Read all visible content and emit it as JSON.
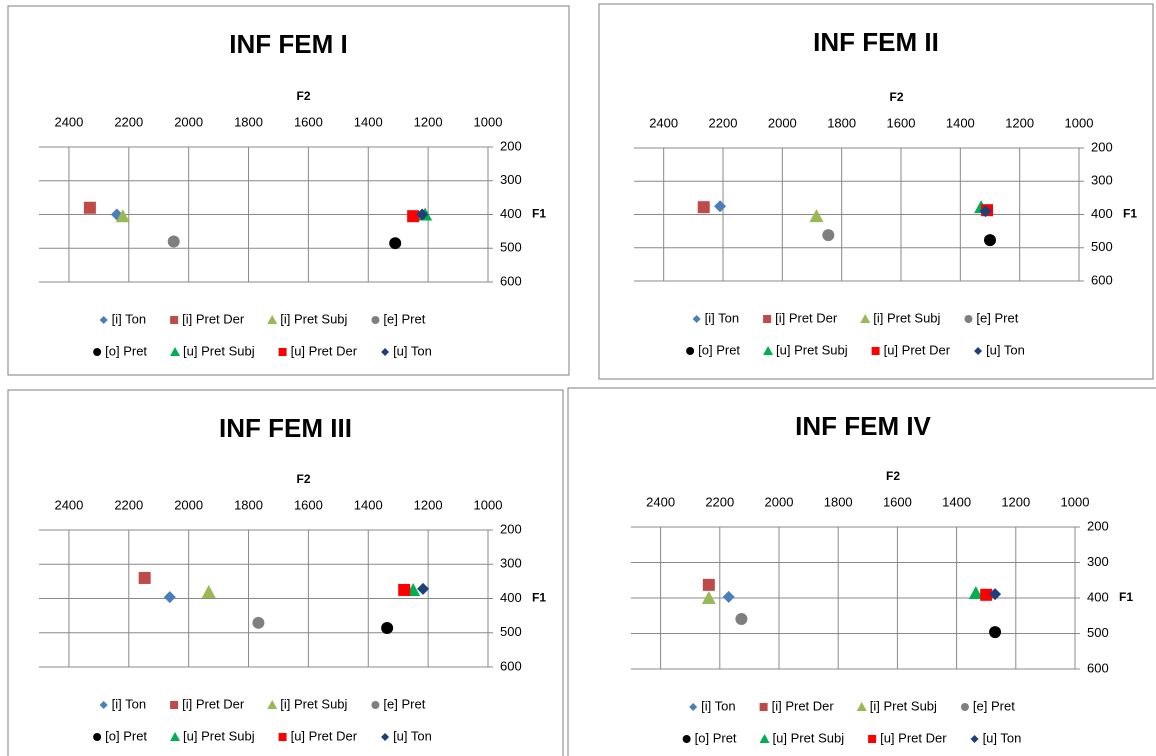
{
  "chart_data": [
    {
      "type": "scatter",
      "title": "INF FEM I",
      "x_label": "F2",
      "y_label": "F1",
      "xlim": [
        2500,
        1000
      ],
      "xticks": [
        2400,
        2200,
        2000,
        1800,
        1600,
        1400,
        1200,
        1000
      ],
      "ylim": [
        600,
        200
      ],
      "yticks": [
        200,
        300,
        400,
        500,
        600
      ],
      "grid": true,
      "series": [
        {
          "name": "[i] Ton",
          "color": "#4a7ebb",
          "marker": "diamond",
          "x": [
            2240
          ],
          "values": [
            400
          ]
        },
        {
          "name": "[i] Pret Der",
          "color": "#be4b48",
          "marker": "square",
          "x": [
            2330
          ],
          "values": [
            380
          ]
        },
        {
          "name": "[i] Pret Subj",
          "color": "#98b954",
          "marker": "triangle",
          "x": [
            2220
          ],
          "values": [
            405
          ]
        },
        {
          "name": "[e] Pret",
          "color": "#7f7f7f",
          "marker": "circle",
          "x": [
            2050
          ],
          "values": [
            480
          ]
        },
        {
          "name": "[o] Pret",
          "color": "#000000",
          "marker": "circle",
          "x": [
            1310
          ],
          "values": [
            485
          ]
        },
        {
          "name": "[u] Pret Subj",
          "color": "#00b050",
          "marker": "triangle",
          "x": [
            1210
          ],
          "values": [
            400
          ]
        },
        {
          "name": "[u] Pret Der",
          "color": "#ff0000",
          "marker": "square",
          "x": [
            1250
          ],
          "values": [
            405
          ]
        },
        {
          "name": "[u] Ton",
          "color": "#1f3f7a",
          "marker": "diamond",
          "x": [
            1220
          ],
          "values": [
            400
          ]
        }
      ]
    },
    {
      "type": "scatter",
      "title": "INF FEM II",
      "x_label": "F2",
      "y_label": "F1",
      "xlim": [
        2500,
        1000
      ],
      "xticks": [
        2400,
        2200,
        2000,
        1800,
        1600,
        1400,
        1200,
        1000
      ],
      "ylim": [
        600,
        200
      ],
      "yticks": [
        200,
        300,
        400,
        500,
        600
      ],
      "grid": true,
      "series": [
        {
          "name": "[i] Ton",
          "color": "#4a7ebb",
          "marker": "diamond",
          "x": [
            2210
          ],
          "values": [
            375
          ]
        },
        {
          "name": "[i] Pret Der",
          "color": "#be4b48",
          "marker": "square",
          "x": [
            2265
          ],
          "values": [
            378
          ]
        },
        {
          "name": "[i] Pret Subj",
          "color": "#98b954",
          "marker": "triangle",
          "x": [
            1885
          ],
          "values": [
            405
          ]
        },
        {
          "name": "[e] Pret",
          "color": "#7f7f7f",
          "marker": "circle",
          "x": [
            1845
          ],
          "values": [
            462
          ]
        },
        {
          "name": "[o] Pret",
          "color": "#000000",
          "marker": "circle",
          "x": [
            1300
          ],
          "values": [
            477
          ]
        },
        {
          "name": "[u] Pret Subj",
          "color": "#00b050",
          "marker": "triangle",
          "x": [
            1330
          ],
          "values": [
            378
          ]
        },
        {
          "name": "[u] Pret Der",
          "color": "#ff0000",
          "marker": "square",
          "x": [
            1310
          ],
          "values": [
            387
          ]
        },
        {
          "name": "[u] Ton",
          "color": "#1f3f7a",
          "marker": "diamond",
          "x": [
            1315
          ],
          "values": [
            390
          ]
        }
      ]
    },
    {
      "type": "scatter",
      "title": "INF FEM III",
      "x_label": "F2",
      "y_label": "F1",
      "xlim": [
        2500,
        1000
      ],
      "xticks": [
        2400,
        2200,
        2000,
        1800,
        1600,
        1400,
        1200,
        1000
      ],
      "ylim": [
        600,
        200
      ],
      "yticks": [
        200,
        300,
        400,
        500,
        600
      ],
      "grid": true,
      "series": [
        {
          "name": "[i] Ton",
          "color": "#4a7ebb",
          "marker": "diamond",
          "x": [
            2063
          ],
          "values": [
            396
          ]
        },
        {
          "name": "[i] Pret Der",
          "color": "#be4b48",
          "marker": "square",
          "x": [
            2147
          ],
          "values": [
            340
          ]
        },
        {
          "name": "[i] Pret Subj",
          "color": "#98b954",
          "marker": "triangle",
          "x": [
            1933
          ],
          "values": [
            381
          ]
        },
        {
          "name": "[e] Pret",
          "color": "#7f7f7f",
          "marker": "circle",
          "x": [
            1767
          ],
          "values": [
            471
          ]
        },
        {
          "name": "[o] Pret",
          "color": "#000000",
          "marker": "circle",
          "x": [
            1337
          ],
          "values": [
            486
          ]
        },
        {
          "name": "[u] Pret Subj",
          "color": "#00b050",
          "marker": "triangle",
          "x": [
            1250
          ],
          "values": [
            375
          ]
        },
        {
          "name": "[u] Pret Der",
          "color": "#ff0000",
          "marker": "square",
          "x": [
            1280
          ],
          "values": [
            375
          ]
        },
        {
          "name": "[u] Ton",
          "color": "#1f3f7a",
          "marker": "diamond",
          "x": [
            1217
          ],
          "values": [
            372
          ]
        }
      ]
    },
    {
      "type": "scatter",
      "title": "INF FEM IV",
      "x_label": "F2",
      "y_label": "F1",
      "xlim": [
        2500,
        1000
      ],
      "xticks": [
        2400,
        2200,
        2000,
        1800,
        1600,
        1400,
        1200,
        1000
      ],
      "ylim": [
        600,
        200
      ],
      "yticks": [
        200,
        300,
        400,
        500,
        600
      ],
      "grid": true,
      "series": [
        {
          "name": "[i] Ton",
          "color": "#4a7ebb",
          "marker": "diamond",
          "x": [
            2170
          ],
          "values": [
            397
          ]
        },
        {
          "name": "[i] Pret Der",
          "color": "#be4b48",
          "marker": "square",
          "x": [
            2237
          ],
          "values": [
            363
          ]
        },
        {
          "name": "[i] Pret Subj",
          "color": "#98b954",
          "marker": "triangle",
          "x": [
            2237
          ],
          "values": [
            400
          ]
        },
        {
          "name": "[e] Pret",
          "color": "#7f7f7f",
          "marker": "circle",
          "x": [
            2127
          ],
          "values": [
            459
          ]
        },
        {
          "name": "[o] Pret",
          "color": "#000000",
          "marker": "circle",
          "x": [
            1270
          ],
          "values": [
            496
          ]
        },
        {
          "name": "[u] Pret Subj",
          "color": "#00b050",
          "marker": "triangle",
          "x": [
            1335
          ],
          "values": [
            386
          ]
        },
        {
          "name": "[u] Pret Der",
          "color": "#ff0000",
          "marker": "square",
          "x": [
            1300
          ],
          "values": [
            391
          ]
        },
        {
          "name": "[u] Ton",
          "color": "#1f3f7a",
          "marker": "diamond",
          "x": [
            1270
          ],
          "values": [
            389
          ]
        }
      ]
    }
  ]
}
